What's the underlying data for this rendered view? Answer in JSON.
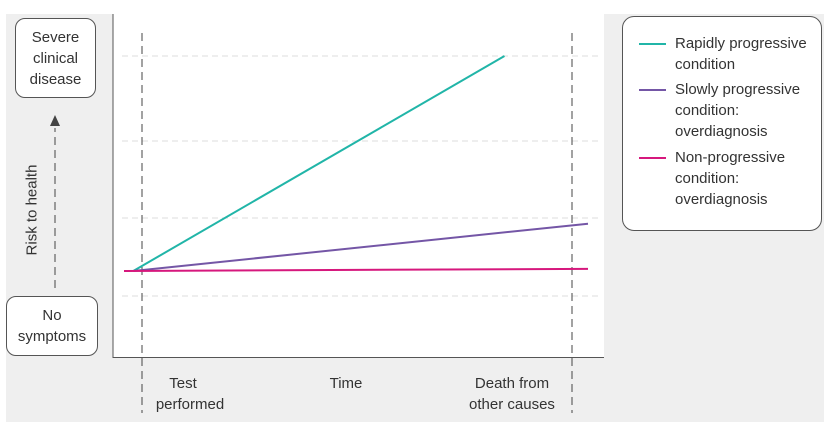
{
  "chart_data": {
    "type": "line",
    "title": "",
    "xlabel": "Time",
    "ylabel": "Risk to health",
    "x_markers": [
      {
        "label_line1": "Test",
        "label_line2": "performed"
      },
      {
        "label_line1": "Death from",
        "label_line2": "other causes"
      }
    ],
    "y_levels": {
      "top": "Severe clinical disease",
      "bottom": "No symptoms"
    },
    "series": [
      {
        "name_lines": [
          "Rapidly progressive",
          "condition"
        ],
        "color": "#21b5a8",
        "start": [
          0.02,
          0.0
        ],
        "end": [
          0.82,
          1.0
        ]
      },
      {
        "name_lines": [
          "Slowly progressive",
          "condition:",
          "overdiagnosis"
        ],
        "color": "#7456a6",
        "start": [
          0.02,
          0.0
        ],
        "end": [
          1.0,
          0.22
        ]
      },
      {
        "name_lines": [
          "Non-progressive",
          "condition:",
          "overdiagnosis"
        ],
        "color": "#d6187d",
        "start": [
          0.0,
          0.0
        ],
        "end": [
          1.0,
          0.01
        ]
      }
    ]
  },
  "colors": {
    "background_panel": "#efefef",
    "axis": "#555555"
  }
}
